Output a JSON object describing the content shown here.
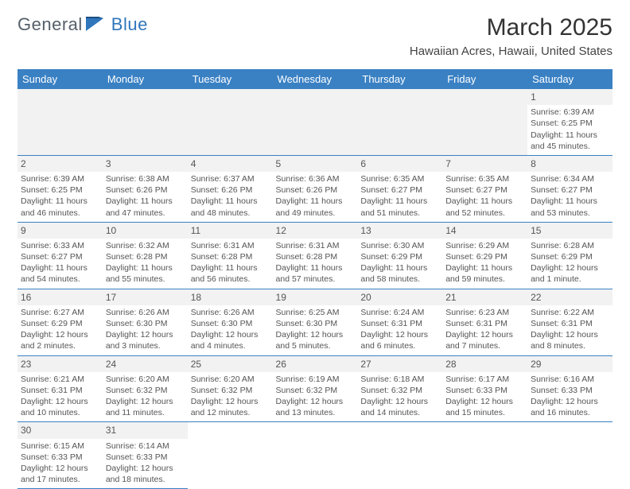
{
  "logo": {
    "part1": "General",
    "part2": "Blue"
  },
  "title": "March 2025",
  "location": "Hawaiian Acres, Hawaii, United States",
  "colors": {
    "header_bg": "#3a81c4",
    "header_text": "#ffffff",
    "daynum_bg": "#f2f2f2",
    "text": "#555555",
    "logo_gray": "#55606a",
    "logo_blue": "#2f76bb"
  },
  "typography": {
    "title_fontsize": 30,
    "location_fontsize": 15,
    "header_fontsize": 13,
    "cell_fontsize": 10.5,
    "daynum_fontsize": 12
  },
  "weekdays": [
    "Sunday",
    "Monday",
    "Tuesday",
    "Wednesday",
    "Thursday",
    "Friday",
    "Saturday"
  ],
  "lead_blanks": 6,
  "days": [
    {
      "n": "1",
      "sunrise": "Sunrise: 6:39 AM",
      "sunset": "Sunset: 6:25 PM",
      "daylight": "Daylight: 11 hours and 45 minutes."
    },
    {
      "n": "2",
      "sunrise": "Sunrise: 6:39 AM",
      "sunset": "Sunset: 6:25 PM",
      "daylight": "Daylight: 11 hours and 46 minutes."
    },
    {
      "n": "3",
      "sunrise": "Sunrise: 6:38 AM",
      "sunset": "Sunset: 6:26 PM",
      "daylight": "Daylight: 11 hours and 47 minutes."
    },
    {
      "n": "4",
      "sunrise": "Sunrise: 6:37 AM",
      "sunset": "Sunset: 6:26 PM",
      "daylight": "Daylight: 11 hours and 48 minutes."
    },
    {
      "n": "5",
      "sunrise": "Sunrise: 6:36 AM",
      "sunset": "Sunset: 6:26 PM",
      "daylight": "Daylight: 11 hours and 49 minutes."
    },
    {
      "n": "6",
      "sunrise": "Sunrise: 6:35 AM",
      "sunset": "Sunset: 6:27 PM",
      "daylight": "Daylight: 11 hours and 51 minutes."
    },
    {
      "n": "7",
      "sunrise": "Sunrise: 6:35 AM",
      "sunset": "Sunset: 6:27 PM",
      "daylight": "Daylight: 11 hours and 52 minutes."
    },
    {
      "n": "8",
      "sunrise": "Sunrise: 6:34 AM",
      "sunset": "Sunset: 6:27 PM",
      "daylight": "Daylight: 11 hours and 53 minutes."
    },
    {
      "n": "9",
      "sunrise": "Sunrise: 6:33 AM",
      "sunset": "Sunset: 6:27 PM",
      "daylight": "Daylight: 11 hours and 54 minutes."
    },
    {
      "n": "10",
      "sunrise": "Sunrise: 6:32 AM",
      "sunset": "Sunset: 6:28 PM",
      "daylight": "Daylight: 11 hours and 55 minutes."
    },
    {
      "n": "11",
      "sunrise": "Sunrise: 6:31 AM",
      "sunset": "Sunset: 6:28 PM",
      "daylight": "Daylight: 11 hours and 56 minutes."
    },
    {
      "n": "12",
      "sunrise": "Sunrise: 6:31 AM",
      "sunset": "Sunset: 6:28 PM",
      "daylight": "Daylight: 11 hours and 57 minutes."
    },
    {
      "n": "13",
      "sunrise": "Sunrise: 6:30 AM",
      "sunset": "Sunset: 6:29 PM",
      "daylight": "Daylight: 11 hours and 58 minutes."
    },
    {
      "n": "14",
      "sunrise": "Sunrise: 6:29 AM",
      "sunset": "Sunset: 6:29 PM",
      "daylight": "Daylight: 11 hours and 59 minutes."
    },
    {
      "n": "15",
      "sunrise": "Sunrise: 6:28 AM",
      "sunset": "Sunset: 6:29 PM",
      "daylight": "Daylight: 12 hours and 1 minute."
    },
    {
      "n": "16",
      "sunrise": "Sunrise: 6:27 AM",
      "sunset": "Sunset: 6:29 PM",
      "daylight": "Daylight: 12 hours and 2 minutes."
    },
    {
      "n": "17",
      "sunrise": "Sunrise: 6:26 AM",
      "sunset": "Sunset: 6:30 PM",
      "daylight": "Daylight: 12 hours and 3 minutes."
    },
    {
      "n": "18",
      "sunrise": "Sunrise: 6:26 AM",
      "sunset": "Sunset: 6:30 PM",
      "daylight": "Daylight: 12 hours and 4 minutes."
    },
    {
      "n": "19",
      "sunrise": "Sunrise: 6:25 AM",
      "sunset": "Sunset: 6:30 PM",
      "daylight": "Daylight: 12 hours and 5 minutes."
    },
    {
      "n": "20",
      "sunrise": "Sunrise: 6:24 AM",
      "sunset": "Sunset: 6:31 PM",
      "daylight": "Daylight: 12 hours and 6 minutes."
    },
    {
      "n": "21",
      "sunrise": "Sunrise: 6:23 AM",
      "sunset": "Sunset: 6:31 PM",
      "daylight": "Daylight: 12 hours and 7 minutes."
    },
    {
      "n": "22",
      "sunrise": "Sunrise: 6:22 AM",
      "sunset": "Sunset: 6:31 PM",
      "daylight": "Daylight: 12 hours and 8 minutes."
    },
    {
      "n": "23",
      "sunrise": "Sunrise: 6:21 AM",
      "sunset": "Sunset: 6:31 PM",
      "daylight": "Daylight: 12 hours and 10 minutes."
    },
    {
      "n": "24",
      "sunrise": "Sunrise: 6:20 AM",
      "sunset": "Sunset: 6:32 PM",
      "daylight": "Daylight: 12 hours and 11 minutes."
    },
    {
      "n": "25",
      "sunrise": "Sunrise: 6:20 AM",
      "sunset": "Sunset: 6:32 PM",
      "daylight": "Daylight: 12 hours and 12 minutes."
    },
    {
      "n": "26",
      "sunrise": "Sunrise: 6:19 AM",
      "sunset": "Sunset: 6:32 PM",
      "daylight": "Daylight: 12 hours and 13 minutes."
    },
    {
      "n": "27",
      "sunrise": "Sunrise: 6:18 AM",
      "sunset": "Sunset: 6:32 PM",
      "daylight": "Daylight: 12 hours and 14 minutes."
    },
    {
      "n": "28",
      "sunrise": "Sunrise: 6:17 AM",
      "sunset": "Sunset: 6:33 PM",
      "daylight": "Daylight: 12 hours and 15 minutes."
    },
    {
      "n": "29",
      "sunrise": "Sunrise: 6:16 AM",
      "sunset": "Sunset: 6:33 PM",
      "daylight": "Daylight: 12 hours and 16 minutes."
    },
    {
      "n": "30",
      "sunrise": "Sunrise: 6:15 AM",
      "sunset": "Sunset: 6:33 PM",
      "daylight": "Daylight: 12 hours and 17 minutes."
    },
    {
      "n": "31",
      "sunrise": "Sunrise: 6:14 AM",
      "sunset": "Sunset: 6:33 PM",
      "daylight": "Daylight: 12 hours and 18 minutes."
    }
  ]
}
